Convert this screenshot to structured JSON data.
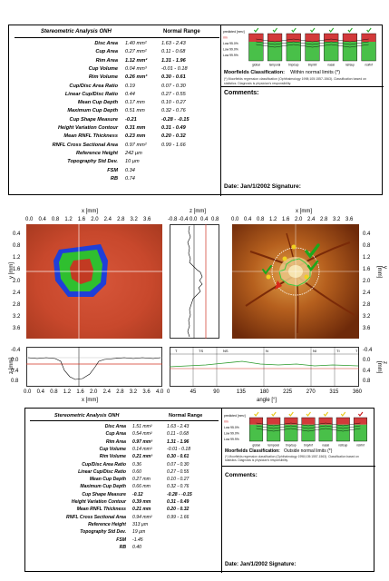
{
  "top_report": {
    "title": "Stereometric Analysis ONH",
    "range_header": "Normal Range",
    "rows": [
      {
        "label": "Disc Area",
        "value": "1.40 mm²",
        "range": "1.63 - 2.43",
        "bold": false
      },
      {
        "label": "Cup Area",
        "value": "0.27 mm²",
        "range": "0.11 - 0.68",
        "bold": false
      },
      {
        "label": "Rim Area",
        "value": "1.12 mm²",
        "range": "1.31 - 1.96",
        "bold": true
      },
      {
        "label": "Cup Volume",
        "value": "0.04 mm³",
        "range": "-0.01 - 0.18",
        "bold": false
      },
      {
        "label": "Rim Volume",
        "value": "0.26 mm³",
        "range": "0.30 - 0.61",
        "bold": true
      },
      {
        "label": "Cup/Disc Area Ratio",
        "value": "0.19",
        "range": "0.07 - 0.30",
        "bold": false
      },
      {
        "label": "Linear Cup/Disc Ratio",
        "value": "0.44",
        "range": "0.27 - 0.55",
        "bold": false
      },
      {
        "label": "Mean Cup Depth",
        "value": "0.17 mm",
        "range": "0.10 - 0.27",
        "bold": false
      },
      {
        "label": "Maximum Cup Depth",
        "value": "0.51 mm",
        "range": "0.32 - 0.76",
        "bold": false
      },
      {
        "label": "Cup Shape Measure",
        "value": "-0.21",
        "range": "-0.28 - -0.15",
        "bold": true
      },
      {
        "label": "Height Variation Contour",
        "value": "0.31 mm",
        "range": "0.31 - 0.49",
        "bold": true
      },
      {
        "label": "Mean RNFL Thickness",
        "value": "0.23 mm",
        "range": "0.20 - 0.32",
        "bold": true
      },
      {
        "label": "RNFL Cross Sectional Area",
        "value": "0.97 mm²",
        "range": "0.99 - 1.66",
        "bold": false
      },
      {
        "label": "Reference Height",
        "value": "242 µm",
        "range": "",
        "bold": false
      },
      {
        "label": "Topography Std Dev.",
        "value": "10 µm",
        "range": "",
        "bold": false
      },
      {
        "label": "FSM",
        "value": "0.34",
        "range": "",
        "bold": false
      },
      {
        "label": "RB",
        "value": "0.74",
        "range": "",
        "bold": false
      }
    ],
    "moorfields_label": "Moorfields Classification:",
    "moorfields_result": "Within normal limits (*)",
    "ref_text": "(*) Moorfields regression classification (Ophthalmology 1998;105:1557-1563). Classification based on statistics. Diagnosis is physician's responsibility.",
    "comments_label": "Comments:",
    "date_label": "Date: Jan/1/2002",
    "signature_label": "Signature:",
    "bar_labels": [
      "global",
      "temporal",
      "tmp/sup",
      "tmp/inf",
      "nasal",
      "nsl/sup",
      "nsl/inf"
    ],
    "legend": [
      "predicted [mm²]",
      "rim",
      "Low 95.0%",
      "Low 99.0%",
      "Low 99.9%"
    ],
    "status_colors": [
      "#27a827",
      "#27a827",
      "#27a827",
      "#27a827",
      "#27a827",
      "#27a827",
      "#27a827"
    ]
  },
  "bottom_report": {
    "title": "Stereometric Analysis ONH",
    "range_header": "Normal Range",
    "rows": [
      {
        "label": "Disc Area",
        "value": "1.51 mm²",
        "range": "1.63 - 2.43",
        "bold": false
      },
      {
        "label": "Cup Area",
        "value": "0.54 mm²",
        "range": "0.11 - 0.68",
        "bold": false
      },
      {
        "label": "Rim Area",
        "value": "0.97 mm²",
        "range": "1.31 - 1.96",
        "bold": true
      },
      {
        "label": "Cup Volume",
        "value": "0.14 mm³",
        "range": "-0.01 - 0.18",
        "bold": false
      },
      {
        "label": "Rim Volume",
        "value": "0.21 mm³",
        "range": "0.30 - 0.61",
        "bold": true
      },
      {
        "label": "Cup/Disc Area Ratio",
        "value": "0.36",
        "range": "0.07 - 0.30",
        "bold": false
      },
      {
        "label": "Linear Cup/Disc Ratio",
        "value": "0.60",
        "range": "0.27 - 0.55",
        "bold": false
      },
      {
        "label": "Mean Cup Depth",
        "value": "0.27 mm",
        "range": "0.10 - 0.27",
        "bold": false
      },
      {
        "label": "Maximum Cup Depth",
        "value": "0.66 mm",
        "range": "0.32 - 0.76",
        "bold": false
      },
      {
        "label": "Cup Shape Measure",
        "value": "-0.12",
        "range": "-0.28 - -0.15",
        "bold": true
      },
      {
        "label": "Height Variation Contour",
        "value": "0.39 mm",
        "range": "0.31 - 0.49",
        "bold": true
      },
      {
        "label": "Mean RNFL Thickness",
        "value": "0.21 mm",
        "range": "0.20 - 0.32",
        "bold": true
      },
      {
        "label": "RNFL Cross Sectional Area",
        "value": "0.94 mm²",
        "range": "0.99 - 1.66",
        "bold": false
      },
      {
        "label": "Reference Height",
        "value": "313 µm",
        "range": "",
        "bold": false
      },
      {
        "label": "Topography Std Dev.",
        "value": "19 µm",
        "range": "",
        "bold": false
      },
      {
        "label": "FSM",
        "value": "-1.45",
        "range": "",
        "bold": false
      },
      {
        "label": "RB",
        "value": "0.40",
        "range": "",
        "bold": false
      }
    ],
    "moorfields_label": "Moorfields Classification:",
    "moorfields_result": "Outside normal limits (*)",
    "ref_text": "(*) Moorfields regression classification (Ophthalmology 1998;105:1557-1563). Classification based on statistics. Diagnosis is physician's responsibility.",
    "comments_label": "Comments:",
    "date_label": "Date: Jan/1/2002",
    "signature_label": "Signature:",
    "bar_labels": [
      "global",
      "temporal",
      "tmp/sup",
      "tmp/inf",
      "nasal",
      "nsl/sup",
      "nsl/inf"
    ],
    "legend": [
      "predicted [mm²]",
      "rim",
      "Low 95.0%",
      "Low 99.0%",
      "Low 99.9%"
    ],
    "status_colors": [
      "#e8c81a",
      "#e8c81a",
      "#e8c81a",
      "#e8c81a",
      "#e8c81a",
      "#e8c81a",
      "#c81a1a"
    ]
  },
  "middle": {
    "x_axis_title": "x [mm]",
    "z_axis_title": "z [mm]",
    "y_axis_title": "y [mm]",
    "angle_axis_title": "angle [°]",
    "x_ticks": [
      "0.0",
      "0.4",
      "0.8",
      "1.2",
      "1.6",
      "2.0",
      "2.4",
      "2.8",
      "3.2",
      "3.6"
    ],
    "x_ticks_bottom": [
      "0.0",
      "0.4",
      "0.8",
      "1.2",
      "1.6",
      "2.0",
      "2.4",
      "2.8",
      "3.2",
      "3.6",
      "4.0"
    ],
    "y_ticks": [
      "0.4",
      "0.8",
      "1.2",
      "1.6",
      "2.0",
      "2.4",
      "2.8",
      "3.2",
      "3.6"
    ],
    "z_ticks": [
      "-0.8",
      "-0.4",
      "0.0",
      "0.4",
      "0.8"
    ],
    "zside_ticks": [
      "-0.4",
      "0.0",
      "0.4",
      "0.8"
    ],
    "angle_ticks": [
      "0",
      "45",
      "90",
      "135",
      "180",
      "225",
      "270",
      "315",
      "360"
    ],
    "sector_labels": [
      "T",
      "TS",
      "NS",
      "N",
      "NI",
      "TI",
      "T"
    ]
  }
}
